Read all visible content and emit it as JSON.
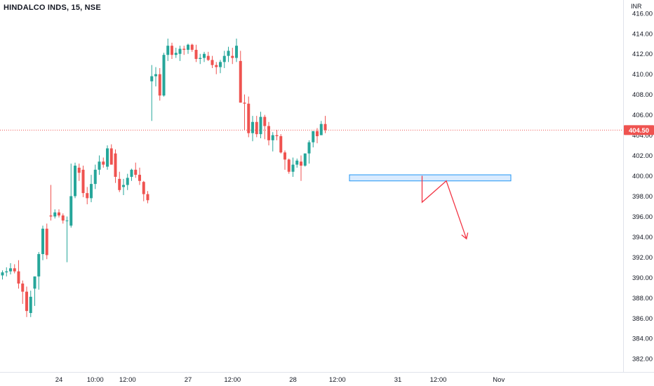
{
  "header": {
    "symbol_title": "HINDALCO INDS, 15, NSE"
  },
  "chart_data": {
    "type": "candlestick",
    "currency": "INR",
    "ylim": [
      380.7,
      417.3
    ],
    "y_ticks": [
      382,
      384,
      386,
      388,
      390,
      392,
      394,
      396,
      398,
      400,
      402,
      404,
      406,
      408,
      410,
      412,
      414,
      416
    ],
    "x_ticks": [
      {
        "label": "24",
        "index": 14
      },
      {
        "label": "10:00",
        "index": 23
      },
      {
        "label": "12:00",
        "index": 31
      },
      {
        "label": "27",
        "index": 46
      },
      {
        "label": "12:00",
        "index": 57
      },
      {
        "label": "28",
        "index": 72
      },
      {
        "label": "12:00",
        "index": 83
      },
      {
        "label": "31",
        "index": 98
      },
      {
        "label": "12:00",
        "index": 108
      },
      {
        "label": "Nov",
        "index": 123
      }
    ],
    "last_price": 404.5,
    "last_price_label": "404.50",
    "candles": [
      [
        390.2,
        390.7,
        389.8,
        390.5
      ],
      [
        390.5,
        391.0,
        390.1,
        390.6
      ],
      [
        390.6,
        391.4,
        390.3,
        390.9
      ],
      [
        390.9,
        391.3,
        390.4,
        390.6
      ],
      [
        390.6,
        391.7,
        388.9,
        389.4
      ],
      [
        389.4,
        389.7,
        387.4,
        388.6
      ],
      [
        388.6,
        389.1,
        386.1,
        386.7
      ],
      [
        386.5,
        388.7,
        386.1,
        388.1
      ],
      [
        388.9,
        390.1,
        387.2,
        390.1
      ],
      [
        390.1,
        392.5,
        388.8,
        392.3
      ],
      [
        392.3,
        395.1,
        391.7,
        394.8
      ],
      [
        394.8,
        395.3,
        391.8,
        392.2
      ],
      [
        396.1,
        399.1,
        395.6,
        396.0
      ],
      [
        396.0,
        396.7,
        395.8,
        396.4
      ],
      [
        396.4,
        396.7,
        395.9,
        396.1
      ],
      [
        396.1,
        396.3,
        395.3,
        395.6
      ],
      [
        395.6,
        396.0,
        391.5,
        395.6
      ],
      [
        395.1,
        401.2,
        394.9,
        398.0
      ],
      [
        398.0,
        401.3,
        397.8,
        401.0
      ],
      [
        400.8,
        401.2,
        399.5,
        400.3
      ],
      [
        400.6,
        401.0,
        397.9,
        398.3
      ],
      [
        398.3,
        398.9,
        397.2,
        397.8
      ],
      [
        397.8,
        400.1,
        397.4,
        399.2
      ],
      [
        399.2,
        401.1,
        398.7,
        400.6
      ],
      [
        400.6,
        402.0,
        400.1,
        401.4
      ],
      [
        401.4,
        401.8,
        400.8,
        401.1
      ],
      [
        400.9,
        403.0,
        400.6,
        402.7
      ],
      [
        402.7,
        403.1,
        401.1,
        401.1
      ],
      [
        402.2,
        402.6,
        399.3,
        399.9
      ],
      [
        399.7,
        400.4,
        398.4,
        398.6
      ],
      [
        398.9,
        399.7,
        398.1,
        399.1
      ],
      [
        399.1,
        400.2,
        398.6,
        399.8
      ],
      [
        399.9,
        400.7,
        399.5,
        400.6
      ],
      [
        400.6,
        401.3,
        399.8,
        400.1
      ],
      [
        400.1,
        400.8,
        399.1,
        399.5
      ],
      [
        399.4,
        399.5,
        397.5,
        398.2
      ],
      [
        398.2,
        398.5,
        397.3,
        397.6
      ],
      [
        409.3,
        410.9,
        405.4,
        409.8
      ],
      [
        409.8,
        410.7,
        408.8,
        410.0
      ],
      [
        410.0,
        410.6,
        407.4,
        407.9
      ],
      [
        407.9,
        412.1,
        407.8,
        411.9
      ],
      [
        411.9,
        413.5,
        411.3,
        412.8
      ],
      [
        412.8,
        413.1,
        411.5,
        411.9
      ],
      [
        411.9,
        412.6,
        411.6,
        412.1
      ],
      [
        412.0,
        412.8,
        411.3,
        412.5
      ],
      [
        412.5,
        412.8,
        411.9,
        412.4
      ],
      [
        412.4,
        413.0,
        412.0,
        412.9
      ],
      [
        412.9,
        413.0,
        412.2,
        412.4
      ],
      [
        412.4,
        412.9,
        411.2,
        411.5
      ],
      [
        411.5,
        412.0,
        411.0,
        411.6
      ],
      [
        411.6,
        412.2,
        411.2,
        412.0
      ],
      [
        411.8,
        412.2,
        411.3,
        411.4
      ],
      [
        411.4,
        411.8,
        410.6,
        410.9
      ],
      [
        410.9,
        411.2,
        410.0,
        410.7
      ],
      [
        410.7,
        411.4,
        410.1,
        411.2
      ],
      [
        411.2,
        412.3,
        410.6,
        411.8
      ],
      [
        411.8,
        412.7,
        411.2,
        412.3
      ],
      [
        411.8,
        412.6,
        411.0,
        411.6
      ],
      [
        411.6,
        413.5,
        411.2,
        412.8
      ],
      [
        411.3,
        412.3,
        407.2,
        407.2
      ],
      [
        407.2,
        408.0,
        404.5,
        407.1
      ],
      [
        407.1,
        407.8,
        403.8,
        404.2
      ],
      [
        404.2,
        405.9,
        403.4,
        405.3
      ],
      [
        405.3,
        405.9,
        403.8,
        404.1
      ],
      [
        404.1,
        406.3,
        403.7,
        405.8
      ],
      [
        405.8,
        406.0,
        403.6,
        404.9
      ],
      [
        404.9,
        405.3,
        403.0,
        403.5
      ],
      [
        403.5,
        404.3,
        402.4,
        404.0
      ],
      [
        404.0,
        404.5,
        403.5,
        403.9
      ],
      [
        403.9,
        404.1,
        402.2,
        402.3
      ],
      [
        402.3,
        402.5,
        400.6,
        401.6
      ],
      [
        401.6,
        401.7,
        400.2,
        400.4
      ],
      [
        400.4,
        401.8,
        399.9,
        401.1
      ],
      [
        401.1,
        401.7,
        400.8,
        401.5
      ],
      [
        401.4,
        402.0,
        399.5,
        401.0
      ],
      [
        401.0,
        402.2,
        400.9,
        402.2
      ],
      [
        402.2,
        403.5,
        401.2,
        403.3
      ],
      [
        403.3,
        404.4,
        402.8,
        404.4
      ],
      [
        404.4,
        404.7,
        403.2,
        403.9
      ],
      [
        404.0,
        405.4,
        404.0,
        405.1
      ],
      [
        405.1,
        405.9,
        404.2,
        404.5
      ]
    ],
    "annotations": {
      "support_zone": {
        "low": 399.5,
        "high": 400.1,
        "start_index": 86,
        "end_index": 126
      },
      "projected_path": [
        {
          "index": 104,
          "price": 400.0
        },
        {
          "index": 104,
          "price": 397.4
        },
        {
          "index": 110,
          "price": 399.5
        },
        {
          "index": 115,
          "price": 393.8
        }
      ]
    },
    "colors": {
      "up": "#26a69a",
      "down": "#ef5350",
      "price_line": "#ef5350",
      "zone_fill": "#d9ebff",
      "zone_stroke": "#2196f3",
      "axis_text": "#131722"
    }
  }
}
